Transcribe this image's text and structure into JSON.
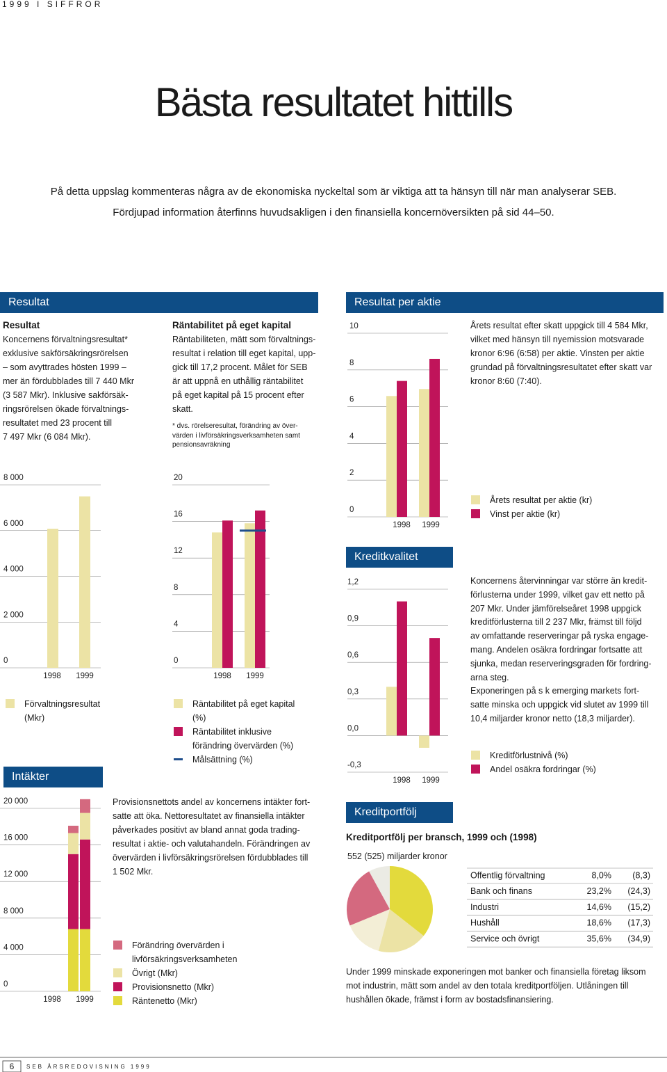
{
  "header": {
    "running_head": "1999 I SIFFROR"
  },
  "title": "Bästa resultatet hittills",
  "intro": [
    "På detta uppslag kommenteras några av de ekonomiska nyckeltal som är viktiga att ta hänsyn till när man analyserar SEB.",
    "Fördjupad information återfinns huvudsakligen i den finansiella koncernöversikten på sid 44–50."
  ],
  "sections": {
    "resultat": {
      "heading": "Resultat",
      "subheading": "Resultat",
      "lines": [
        "Koncernens förvaltningsresultat*",
        "exklusive sakförsäkringsrörelsen",
        "– som avyttrades hösten 1999 –",
        "mer än fördubblades till 7 440 Mkr",
        "(3 587 Mkr). Inklusive sakförsäk-",
        "ringsrörelsen ökade förvaltnings-",
        "resultatet med 23 procent till",
        "7 497 Mkr (6 084 Mkr)."
      ]
    },
    "rantabilitet": {
      "subheading": "Räntabilitet på eget kapital",
      "lines": [
        "Räntabiliteten, mätt som förvaltnings-",
        "resultat i relation till eget kapital, upp-",
        "gick till 17,2 procent. Målet för SEB",
        "är att uppnå en uthållig räntabilitet",
        "på eget kapital på 15 procent efter",
        "skatt."
      ],
      "footnote": [
        "* dvs. rörelseresultat, förändring av över-",
        "värden i livförsäkringsverksamheten samt",
        "pensionsavräkning"
      ]
    },
    "resultat_per_aktie": {
      "heading": "Resultat per aktie",
      "lines": [
        "Årets resultat efter skatt uppgick till 4 584 Mkr,",
        "vilket med hänsyn till nyemission motsvarade",
        "kronor 6:96 (6:58) per aktie. Vinsten per aktie",
        "grundad på förvaltningsresultatet efter skatt var",
        "kronor 8:60 (7:40)."
      ]
    },
    "kreditkvalitet": {
      "heading": "Kreditkvalitet",
      "lines": [
        "Koncernens återvinningar var större än kredit-",
        "förlusterna under 1999, vilket gav ett netto på",
        "207 Mkr. Under jämförelseåret 1998 uppgick",
        "kreditförlusterna till 2 237 Mkr, främst till följd",
        "av omfattande reserveringar på ryska engage-",
        "mang. Andelen osäkra fordringar fortsatte att",
        "sjunka, medan reserveringsgraden för fordring-",
        "arna steg.",
        "Exponeringen på s k emerging markets fort-",
        "satte minska och uppgick vid slutet av 1999 till",
        "10,4 miljarder kronor netto (18,3 miljarder)."
      ]
    },
    "intakter": {
      "heading": "Intäkter",
      "lines": [
        "Provisionsnettots andel av koncernens intäkter fort-",
        "satte att öka. Nettoresultatet av finansiella intäkter",
        "påverkades positivt av bland annat goda trading-",
        "resultat i aktie- och valutahandeln. Förändringen av",
        "övervärden i livförsäkringsrörelsen fördubblades till",
        "1 502 Mkr."
      ]
    },
    "kreditportfolj": {
      "heading": "Kreditportfölj",
      "subheading": "Kreditportfölj per bransch, 1999 och (1998)",
      "note": "552 (525) miljarder kronor",
      "lines": [
        "Under 1999 minskade exponeringen mot banker och finansiella företag liksom",
        "mot industrin, mätt som andel av den totala kreditportföljen. Utlåningen till",
        "hushållen ökade, främst i form av bostadsfinansiering."
      ]
    }
  },
  "footer": {
    "page": "6",
    "text": "SEB ÅRSREDOVISNING 1999"
  },
  "chart_data": [
    {
      "type": "bar",
      "categories": [
        "1998",
        "1999"
      ],
      "ylim": [
        0,
        8000
      ],
      "yticks": [
        0,
        {
          "value": 2000,
          "label": "2 000"
        },
        {
          "value": 4000,
          "label": "4 000"
        },
        {
          "value": 6000,
          "label": "6 000"
        },
        {
          "value": 8000,
          "label": "8 000"
        }
      ],
      "grid": true,
      "series": [
        {
          "name": "Förvaltningsresultat (Mkr)",
          "color": "#ece3a5",
          "values": [
            6084,
            7497
          ]
        }
      ]
    },
    {
      "type": "bar",
      "categories": [
        "1998",
        "1999"
      ],
      "ylim": [
        0,
        20
      ],
      "yticks": [
        0,
        4,
        8,
        12,
        16,
        20
      ],
      "grid": true,
      "series": [
        {
          "name": "Räntabilitet på eget kapital (%)",
          "color": "#ece3a5",
          "values": [
            14.8,
            15.8
          ]
        },
        {
          "name": "Räntabilitet inklusive förändring övervärden (%)",
          "color": "#c0145a",
          "values": [
            16.1,
            17.2
          ]
        },
        {
          "name": "Målsättning (%)",
          "color": "#1f4e8c",
          "mark": "line",
          "values": [
            null,
            15
          ]
        }
      ]
    },
    {
      "type": "bar",
      "categories": [
        "1998",
        "1999"
      ],
      "ylim": [
        0,
        10
      ],
      "yticks": [
        0,
        2,
        4,
        6,
        8,
        10
      ],
      "grid": true,
      "series": [
        {
          "name": "Årets resultat per aktie (kr)",
          "color": "#ece3a5",
          "values": [
            6.58,
            6.96
          ]
        },
        {
          "name": "Vinst per aktie (kr)",
          "color": "#c0145a",
          "values": [
            7.4,
            8.6
          ]
        }
      ]
    },
    {
      "type": "bar",
      "categories": [
        "1998",
        "1999"
      ],
      "ylim": [
        -0.3,
        1.2
      ],
      "yticks": [
        {
          "value": -0.3,
          "label": "-0,3"
        },
        {
          "value": 0,
          "label": "0,0"
        },
        {
          "value": 0.3,
          "label": "0,3"
        },
        {
          "value": 0.6,
          "label": "0,6"
        },
        {
          "value": 0.9,
          "label": "0,9"
        },
        {
          "value": 1.2,
          "label": "1,2"
        }
      ],
      "grid": true,
      "series": [
        {
          "name": "Kreditförlustnivå (%)",
          "color": "#ece3a5",
          "values": [
            0.4,
            -0.1
          ]
        },
        {
          "name": "Andel osäkra fordringar (%)",
          "color": "#c0145a",
          "values": [
            1.1,
            0.8
          ]
        }
      ]
    },
    {
      "type": "stacked_bar",
      "categories": [
        "1998",
        "1999"
      ],
      "ylim": [
        0,
        20000
      ],
      "yticks": [
        0,
        {
          "value": 4000,
          "label": "4 000"
        },
        {
          "value": 8000,
          "label": "8 000"
        },
        {
          "value": 12000,
          "label": "12 000"
        },
        {
          "value": 16000,
          "label": "16 000"
        },
        {
          "value": 20000,
          "label": "20 000"
        }
      ],
      "grid": true,
      "series": [
        {
          "name": "Räntenetto (Mkr)",
          "color": "#e3da3c",
          "values": [
            6800,
            6800
          ]
        },
        {
          "name": "Provisionsnetto (Mkr)",
          "color": "#c0145a",
          "values": [
            8200,
            9800
          ]
        },
        {
          "name": "Övrigt (Mkr)",
          "color": "#ece3a5",
          "values": [
            2300,
            2900
          ]
        },
        {
          "name": "Förändring övervärden i livförsäkringsverksamheten",
          "color": "#d4697f",
          "values": [
            800,
            1500
          ]
        }
      ]
    },
    {
      "type": "pie",
      "categories": [
        "Offentlig förvaltning",
        "Bank och finans",
        "Industri",
        "Hushåll",
        "Service och övrigt"
      ],
      "values": [
        8.0,
        23.2,
        14.6,
        18.6,
        35.6
      ],
      "value_labels": [
        "8,0%",
        "23,2%",
        "14,6%",
        "18,6%",
        "35,6%"
      ],
      "prev_labels": [
        "(8,3)",
        "(24,3)",
        "(15,2)",
        "(17,3)",
        "(34,9)"
      ],
      "colors": [
        "#ebebe4",
        "#d4697f",
        "#f3eed6",
        "#ece3a5",
        "#e3da3c"
      ]
    }
  ]
}
